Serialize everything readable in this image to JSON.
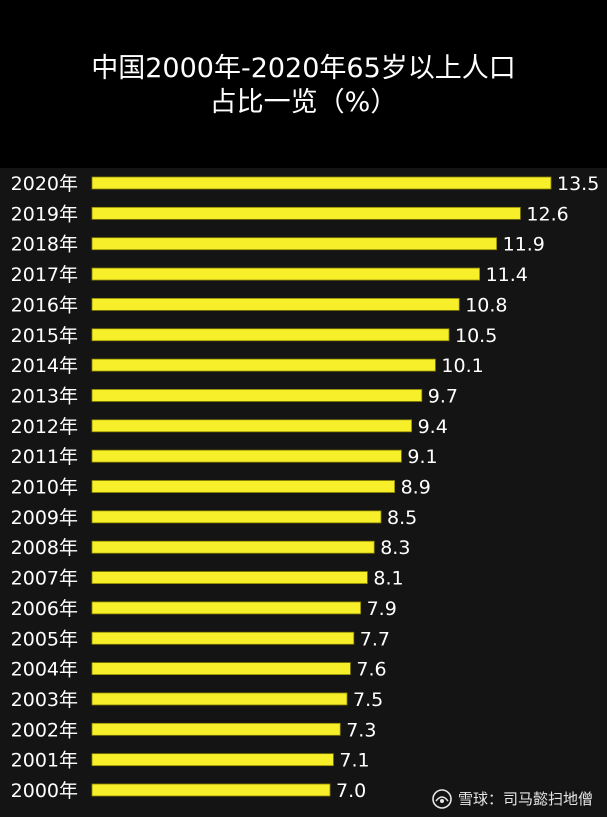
{
  "title": {
    "line1": "中国2000年-2020年65岁以上人口",
    "line2": "占比一览（%）"
  },
  "watermark": {
    "text": "雪球：司马懿扫地僧",
    "icon": "snowball-logo-icon"
  },
  "colors": {
    "background": "#000000",
    "panel": "#141414",
    "bar": "#f7ef2a",
    "bar_edge": "#8a8400",
    "text": "#ffffff"
  },
  "chart_data": {
    "type": "bar",
    "orientation": "horizontal",
    "title": "中国2000年-2020年65岁以上人口占比一览（%）",
    "xlabel": "",
    "ylabel": "",
    "categories": [
      "2020年",
      "2019年",
      "2018年",
      "2017年",
      "2016年",
      "2015年",
      "2014年",
      "2013年",
      "2012年",
      "2011年",
      "2010年",
      "2009年",
      "2008年",
      "2007年",
      "2006年",
      "2005年",
      "2004年",
      "2003年",
      "2002年",
      "2001年",
      "2000年"
    ],
    "values": [
      13.5,
      12.6,
      11.9,
      11.4,
      10.8,
      10.5,
      10.1,
      9.7,
      9.4,
      9.1,
      8.9,
      8.5,
      8.3,
      8.1,
      7.9,
      7.7,
      7.6,
      7.5,
      7.3,
      7.1,
      7.0
    ],
    "value_labels": [
      "13.5",
      "12.6",
      "11.9",
      "11.4",
      "10.8",
      "10.5",
      "10.1",
      "9.7",
      "9.4",
      "9.1",
      "8.9",
      "8.5",
      "8.3",
      "8.1",
      "7.9",
      "7.7",
      "7.6",
      "7.5",
      "7.3",
      "7.1",
      "7.0"
    ],
    "xlim": [
      0,
      13.5
    ],
    "grid": false,
    "legend": "none"
  }
}
